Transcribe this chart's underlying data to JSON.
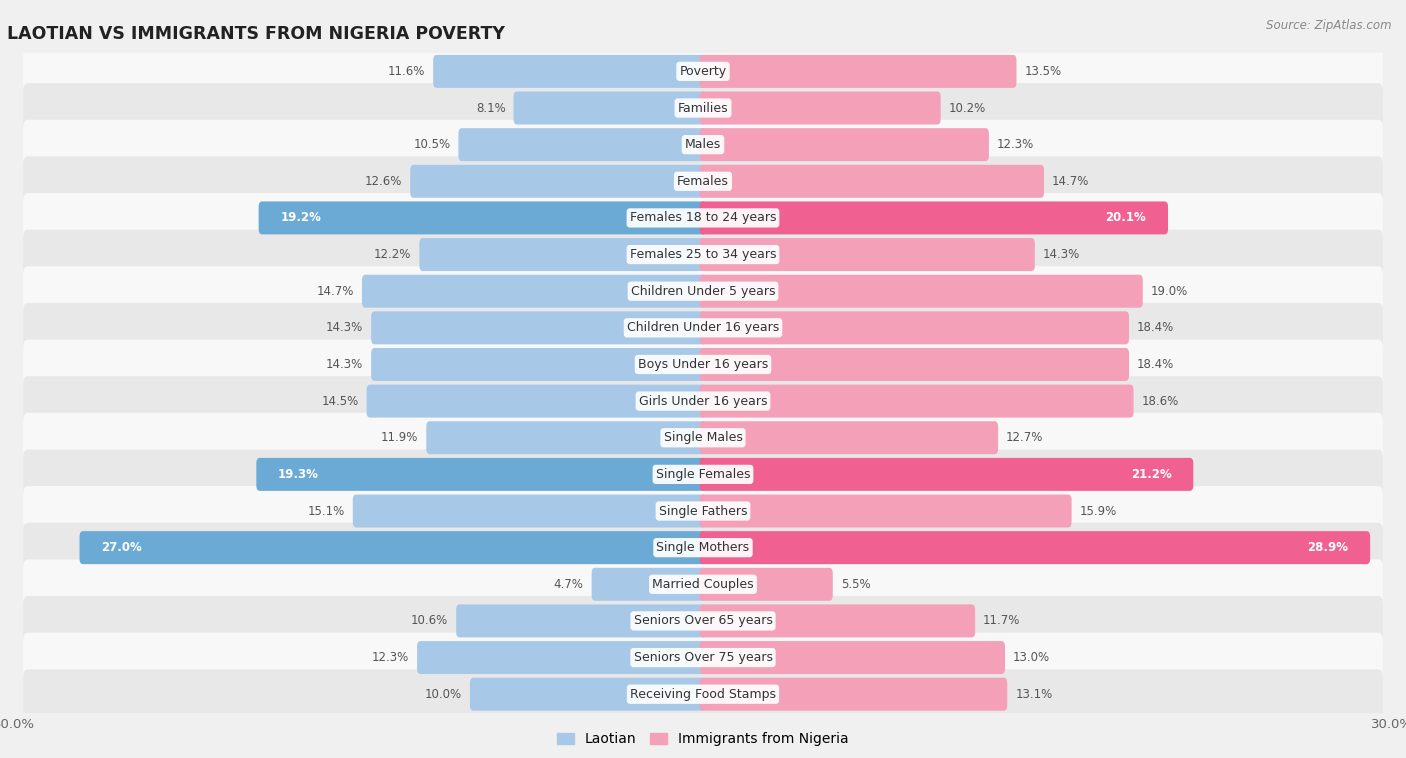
{
  "title": "LAOTIAN VS IMMIGRANTS FROM NIGERIA POVERTY",
  "source": "Source: ZipAtlas.com",
  "categories": [
    "Poverty",
    "Families",
    "Males",
    "Females",
    "Females 18 to 24 years",
    "Females 25 to 34 years",
    "Children Under 5 years",
    "Children Under 16 years",
    "Boys Under 16 years",
    "Girls Under 16 years",
    "Single Males",
    "Single Females",
    "Single Fathers",
    "Single Mothers",
    "Married Couples",
    "Seniors Over 65 years",
    "Seniors Over 75 years",
    "Receiving Food Stamps"
  ],
  "laotian": [
    11.6,
    8.1,
    10.5,
    12.6,
    19.2,
    12.2,
    14.7,
    14.3,
    14.3,
    14.5,
    11.9,
    19.3,
    15.1,
    27.0,
    4.7,
    10.6,
    12.3,
    10.0
  ],
  "nigeria": [
    13.5,
    10.2,
    12.3,
    14.7,
    20.1,
    14.3,
    19.0,
    18.4,
    18.4,
    18.6,
    12.7,
    21.2,
    15.9,
    28.9,
    5.5,
    11.7,
    13.0,
    13.1
  ],
  "laotian_color": "#a8c8e8",
  "nigeria_color": "#f4a0b8",
  "laotian_highlight_color": "#6aaad4",
  "nigeria_highlight_color": "#f06090",
  "highlight_rows": [
    4,
    11,
    13
  ],
  "axis_limit": 30.0,
  "bar_height": 0.6,
  "background_color": "#f0f0f0",
  "row_bg_light": "#f8f8f8",
  "row_bg_dark": "#e8e8e8",
  "label_fontsize": 9.0,
  "value_fontsize": 8.5,
  "title_fontsize": 12.5,
  "legend_fontsize": 10
}
